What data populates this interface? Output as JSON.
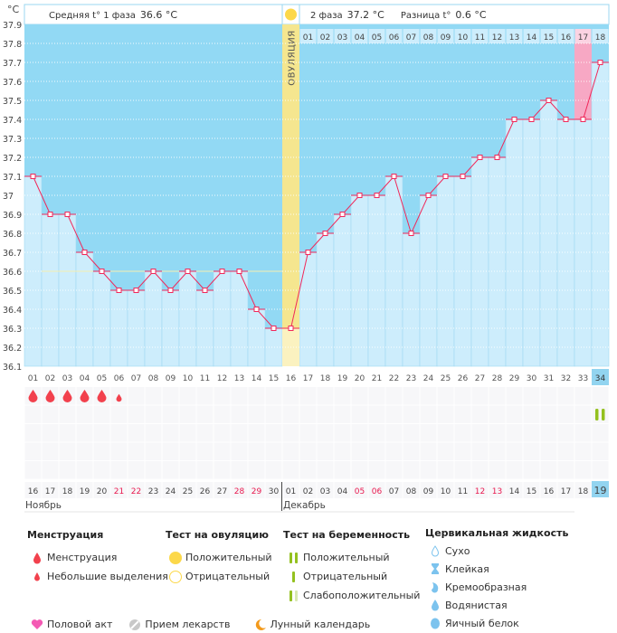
{
  "header": {
    "unit": "°C",
    "phase1_label": "Средняя t° 1 фаза",
    "phase1_value": "36.6 °C",
    "phase2_label": "2 фаза",
    "phase2_value": "37.2 °C",
    "diff_label": "Разница t°",
    "diff_value": "0.6 °C",
    "ovulation_label": "ОВУЛЯЦИЯ"
  },
  "chart_data": {
    "type": "line",
    "ylabel": "°C",
    "ylim": [
      36.1,
      37.9
    ],
    "yticks": [
      "36.1",
      "36.2",
      "36.3",
      "36.4",
      "36.5",
      "36.6",
      "36.7",
      "36.8",
      "36.9",
      "37",
      "37.1",
      "37.2",
      "37.3",
      "37.4",
      "37.5",
      "37.6",
      "37.7",
      "37.8",
      "37.9"
    ],
    "cycle_days": [
      "01",
      "02",
      "03",
      "04",
      "05",
      "06",
      "07",
      "08",
      "09",
      "10",
      "11",
      "12",
      "13",
      "14",
      "15",
      "16",
      "17",
      "18",
      "19",
      "20",
      "21",
      "22",
      "23",
      "24",
      "25",
      "26",
      "27",
      "28",
      "29",
      "30",
      "31",
      "32",
      "33",
      "34"
    ],
    "phase2_days": [
      "01",
      "02",
      "03",
      "04",
      "05",
      "06",
      "07",
      "08",
      "09",
      "10",
      "11",
      "12",
      "13",
      "14",
      "15",
      "16",
      "17",
      "18"
    ],
    "temperatures": [
      37.1,
      36.9,
      36.9,
      36.7,
      36.6,
      36.5,
      36.5,
      36.6,
      36.5,
      36.6,
      36.5,
      36.6,
      36.6,
      36.4,
      36.3,
      36.3,
      36.7,
      36.8,
      36.9,
      37.0,
      37.0,
      37.1,
      36.8,
      37.0,
      37.1,
      37.1,
      37.2,
      37.2,
      37.4,
      37.4,
      37.5,
      37.4,
      37.4,
      37.7
    ],
    "coverline": 36.6,
    "ovulation_cycle_day": 16,
    "highlighted_cycle_day": 33,
    "current_cycle_day": 34,
    "dates": [
      "16",
      "17",
      "18",
      "19",
      "20",
      "21",
      "22",
      "23",
      "24",
      "25",
      "26",
      "27",
      "28",
      "29",
      "30",
      "01",
      "02",
      "03",
      "04",
      "05",
      "06",
      "07",
      "08",
      "09",
      "10",
      "11",
      "12",
      "13",
      "14",
      "15",
      "16",
      "17",
      "18",
      "19"
    ],
    "weekend_dates_index": [
      5,
      6,
      12,
      13,
      19,
      20,
      26,
      27
    ],
    "months": [
      {
        "label": "Ноябрь",
        "start_index": 0
      },
      {
        "label": "Декабрь",
        "start_index": 15
      }
    ],
    "menstruation": [
      "heavy",
      "heavy",
      "heavy",
      "heavy",
      "heavy",
      "light"
    ],
    "pregnancy_test": {
      "cycle_day": 34,
      "result": "positive"
    },
    "grid": true
  },
  "colors": {
    "background": "#92d9f4",
    "fill": "#cdedfc",
    "line": "#f0285a",
    "ovulation": "#f5e68f",
    "highlight": "#f7a8c4",
    "weekend": "#e8194f",
    "current": "#92d4f0"
  },
  "legend": {
    "menstruation": {
      "title": "Менструация",
      "items": [
        "Менструация",
        "Небольшие выделения"
      ]
    },
    "ovulation_test": {
      "title": "Тест на овуляцию",
      "items": [
        "Положительный",
        "Отрицательный"
      ]
    },
    "pregnancy_test": {
      "title": "Тест на беременность",
      "items": [
        "Положительный",
        "Отрицательный",
        "Слабоположительный"
      ]
    },
    "cervical": {
      "title": "Цервикальная жидкость",
      "items": [
        "Сухо",
        "Клейкая",
        "Кремообразная",
        "Водянистая",
        "Яичный белок"
      ]
    },
    "bottom": [
      "Половой акт",
      "Прием лекарств",
      "Лунный календарь"
    ]
  }
}
